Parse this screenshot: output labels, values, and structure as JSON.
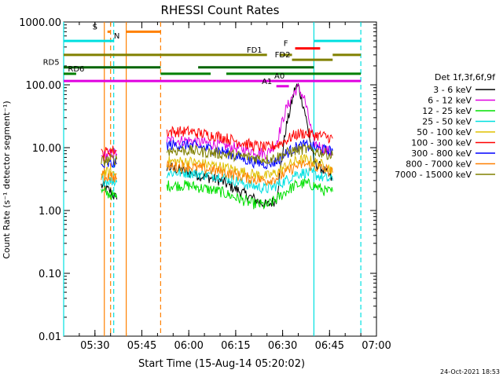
{
  "chart_data": {
    "type": "line",
    "title": "RHESSI Count Rates",
    "xlabel": "Start Time (15-Aug-14 05:20:02)",
    "ylabel": "Count Rate (s⁻¹ detector segment⁻¹)",
    "ylog": true,
    "ylim": [
      0.01,
      1000
    ],
    "xlim": [
      "05:20",
      "07:00"
    ],
    "ytick_labels": [
      "0.01",
      "0.10",
      "1.00",
      "10.00",
      "100.00",
      "1000.00"
    ],
    "xtick_labels": [
      "05:30",
      "05:45",
      "06:00",
      "06:15",
      "06:30",
      "06:45",
      "07:00"
    ],
    "legend_title": "Det 1f,3f,6f,9f",
    "legend_position": "right",
    "series": [
      {
        "name": "3 - 6 keV",
        "color": "#000000",
        "x": [
          "05:32",
          "05:35",
          "05:37",
          "05:53",
          "06:00",
          "06:10",
          "06:20",
          "06:25",
          "06:28",
          "06:31",
          "06:34",
          "06:35",
          "06:37",
          "06:40",
          "06:44",
          "06:46"
        ],
        "values": [
          2.5,
          2.0,
          1.5,
          5.0,
          4.0,
          3.0,
          1.6,
          1.2,
          1.5,
          20,
          90,
          95,
          40,
          6,
          4,
          3
        ]
      },
      {
        "name": "6 - 12 keV",
        "color": "#e000e0",
        "x": [
          "05:32",
          "05:35",
          "05:37",
          "05:53",
          "06:00",
          "06:10",
          "06:20",
          "06:25",
          "06:28",
          "06:31",
          "06:34",
          "06:35",
          "06:37",
          "06:40",
          "06:44",
          "06:46"
        ],
        "values": [
          7,
          8,
          8,
          13,
          13,
          11,
          9,
          8,
          12,
          40,
          80,
          90,
          60,
          12,
          9,
          8
        ]
      },
      {
        "name": "12 - 25 keV",
        "color": "#00e000",
        "x": [
          "05:32",
          "05:35",
          "05:37",
          "05:53",
          "06:00",
          "06:10",
          "06:20",
          "06:25",
          "06:28",
          "06:31",
          "06:34",
          "06:37",
          "06:40",
          "06:44",
          "06:46"
        ],
        "values": [
          2.0,
          1.8,
          1.6,
          2.5,
          2.5,
          2.0,
          1.3,
          1.2,
          1.5,
          2.0,
          2.5,
          2.7,
          2.5,
          2.0,
          2.0
        ]
      },
      {
        "name": "25 - 50 keV",
        "color": "#00e0e0",
        "x": [
          "05:32",
          "05:35",
          "05:37",
          "05:53",
          "06:00",
          "06:10",
          "06:20",
          "06:25",
          "06:28",
          "06:31",
          "06:34",
          "06:37",
          "06:40",
          "06:44",
          "06:46"
        ],
        "values": [
          3.0,
          3.0,
          2.8,
          4.0,
          4.0,
          3.5,
          2.5,
          2.2,
          2.5,
          3.0,
          3.8,
          4.0,
          3.8,
          3.2,
          3.0
        ]
      },
      {
        "name": "50 - 100 keV",
        "color": "#e0c000",
        "x": [
          "05:32",
          "05:35",
          "05:37",
          "05:53",
          "06:00",
          "06:10",
          "06:20",
          "06:25",
          "06:28",
          "06:31",
          "06:34",
          "06:37",
          "06:40",
          "06:44",
          "06:46"
        ],
        "values": [
          4.0,
          4.0,
          3.8,
          6.0,
          6.0,
          5.0,
          3.8,
          3.5,
          4.0,
          5.0,
          6.0,
          6.5,
          6.0,
          5.0,
          4.5
        ]
      },
      {
        "name": "100 - 300 keV",
        "color": "#ff0000",
        "x": [
          "05:32",
          "05:35",
          "05:37",
          "05:53",
          "06:00",
          "06:10",
          "06:20",
          "06:25",
          "06:28",
          "06:31",
          "06:34",
          "06:37",
          "06:40",
          "06:44",
          "06:46"
        ],
        "values": [
          8,
          9,
          9,
          18,
          18,
          15,
          11,
          10,
          11,
          13,
          16,
          17,
          16,
          15,
          14
        ]
      },
      {
        "name": "300 - 800 keV",
        "color": "#0000ff",
        "x": [
          "05:32",
          "05:35",
          "05:37",
          "05:53",
          "06:00",
          "06:10",
          "06:20",
          "06:25",
          "06:28",
          "06:31",
          "06:34",
          "06:37",
          "06:40",
          "06:44",
          "06:46"
        ],
        "values": [
          5,
          5.5,
          5.5,
          11,
          11,
          9,
          6,
          5.5,
          6,
          8,
          10,
          11,
          10,
          9,
          9
        ]
      },
      {
        "name": "800 - 7000 keV",
        "color": "#ff8000",
        "x": [
          "05:32",
          "05:35",
          "05:37",
          "05:53",
          "06:00",
          "06:10",
          "06:20",
          "06:25",
          "06:28",
          "06:31",
          "06:34",
          "06:37",
          "06:40",
          "06:44",
          "06:46"
        ],
        "values": [
          3.5,
          3.5,
          3.3,
          5.0,
          5.0,
          4.2,
          3.2,
          3.0,
          3.3,
          4.0,
          5.0,
          5.5,
          5.0,
          4.5,
          4.0
        ]
      },
      {
        "name": "7000 - 15000 keV",
        "color": "#808000",
        "x": [
          "05:32",
          "05:35",
          "05:37",
          "05:53",
          "06:00",
          "06:10",
          "06:20",
          "06:25",
          "06:28",
          "06:31",
          "06:34",
          "06:37",
          "06:40",
          "06:44",
          "06:46"
        ],
        "values": [
          6,
          6.5,
          6.5,
          9,
          9,
          8,
          7,
          6.5,
          7,
          8,
          9,
          9.5,
          9,
          8,
          7.5
        ]
      }
    ],
    "vertical_lines": [
      {
        "x": "05:20",
        "color": "#00e0e0",
        "style": "solid"
      },
      {
        "x": "05:33",
        "color": "#ff8000",
        "style": "solid"
      },
      {
        "x": "05:35",
        "color": "#ff8000",
        "style": "dashed"
      },
      {
        "x": "05:36",
        "color": "#00e0e0",
        "style": "dashed"
      },
      {
        "x": "05:40",
        "color": "#ff8000",
        "style": "solid"
      },
      {
        "x": "05:51",
        "color": "#ff8000",
        "style": "dashed"
      },
      {
        "x": "06:40",
        "color": "#00e0e0",
        "style": "solid"
      },
      {
        "x": "06:55",
        "color": "#00e0e0",
        "style": "dashed"
      }
    ],
    "flag_bars": [
      {
        "label": "S",
        "color": "#ff8000",
        "value": 700,
        "segments": [
          [
            "05:34",
            "05:35"
          ],
          [
            "05:40",
            "05:51"
          ]
        ],
        "label_at": "05:30"
      },
      {
        "label": "N",
        "color": "#00e0e0",
        "value": 500,
        "segments": [
          [
            "05:20",
            "05:36"
          ],
          [
            "06:40",
            "06:55"
          ]
        ],
        "label_at": "05:37"
      },
      {
        "label": "F",
        "color": "#ff0000",
        "value": 380,
        "segments": [
          [
            "06:34",
            "06:42"
          ]
        ],
        "label_at": "06:31"
      },
      {
        "label": "FD1",
        "color": "#808000",
        "value": 300,
        "segments": [
          [
            "05:20",
            "06:25"
          ],
          [
            "06:29",
            "06:33"
          ],
          [
            "06:46",
            "06:55"
          ]
        ],
        "label_at": "06:21"
      },
      {
        "label": "FD2",
        "color": "#808000",
        "value": 250,
        "segments": [
          [
            "06:33",
            "06:46"
          ]
        ],
        "label_at": "06:30"
      },
      {
        "label": "RD5",
        "color": "#006400",
        "value": 190,
        "segments": [
          [
            "05:20",
            "05:51"
          ],
          [
            "06:03",
            "06:40"
          ]
        ],
        "label_at": "05:16"
      },
      {
        "label": "RD6",
        "color": "#008000",
        "value": 150,
        "segments": [
          [
            "05:20",
            "05:24"
          ],
          [
            "05:51",
            "06:07"
          ],
          [
            "06:12",
            "06:55"
          ]
        ],
        "label_at": "05:24"
      },
      {
        "label": "A0",
        "color": "#e000e0",
        "value": 115,
        "segments": [
          [
            "05:20",
            "06:55"
          ]
        ],
        "label_at": "06:29"
      },
      {
        "label": "A1",
        "color": "#e000e0",
        "value": 95,
        "segments": [
          [
            "06:28",
            "06:32"
          ]
        ],
        "label_at": "06:25"
      }
    ]
  },
  "footer": {
    "date_stamp": "24-Oct-2021 18:53"
  }
}
